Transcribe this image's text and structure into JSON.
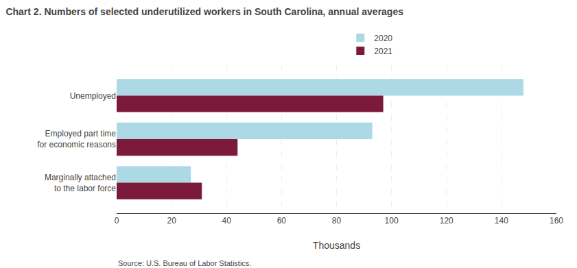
{
  "chart_data": {
    "type": "bar",
    "orientation": "horizontal",
    "title": "Chart 2. Numbers of selected underutilized workers in South Carolina, annual averages",
    "categories": [
      "Marginally attached\nto the labor force",
      "Employed part time\nfor economic reasons",
      "Unemployed"
    ],
    "series": [
      {
        "name": "2020",
        "color": "#add8e6",
        "values": [
          27,
          93,
          148
        ]
      },
      {
        "name": "2021",
        "color": "#7b1a3a",
        "values": [
          31,
          44,
          97
        ]
      }
    ],
    "xlabel": "Thousands",
    "xlim": [
      0,
      160
    ],
    "xticks": [
      0,
      20,
      40,
      60,
      80,
      100,
      120,
      140,
      160
    ],
    "grid": true,
    "legend": "top",
    "source": "Source: U.S. Bureau of Labor Statistics."
  }
}
